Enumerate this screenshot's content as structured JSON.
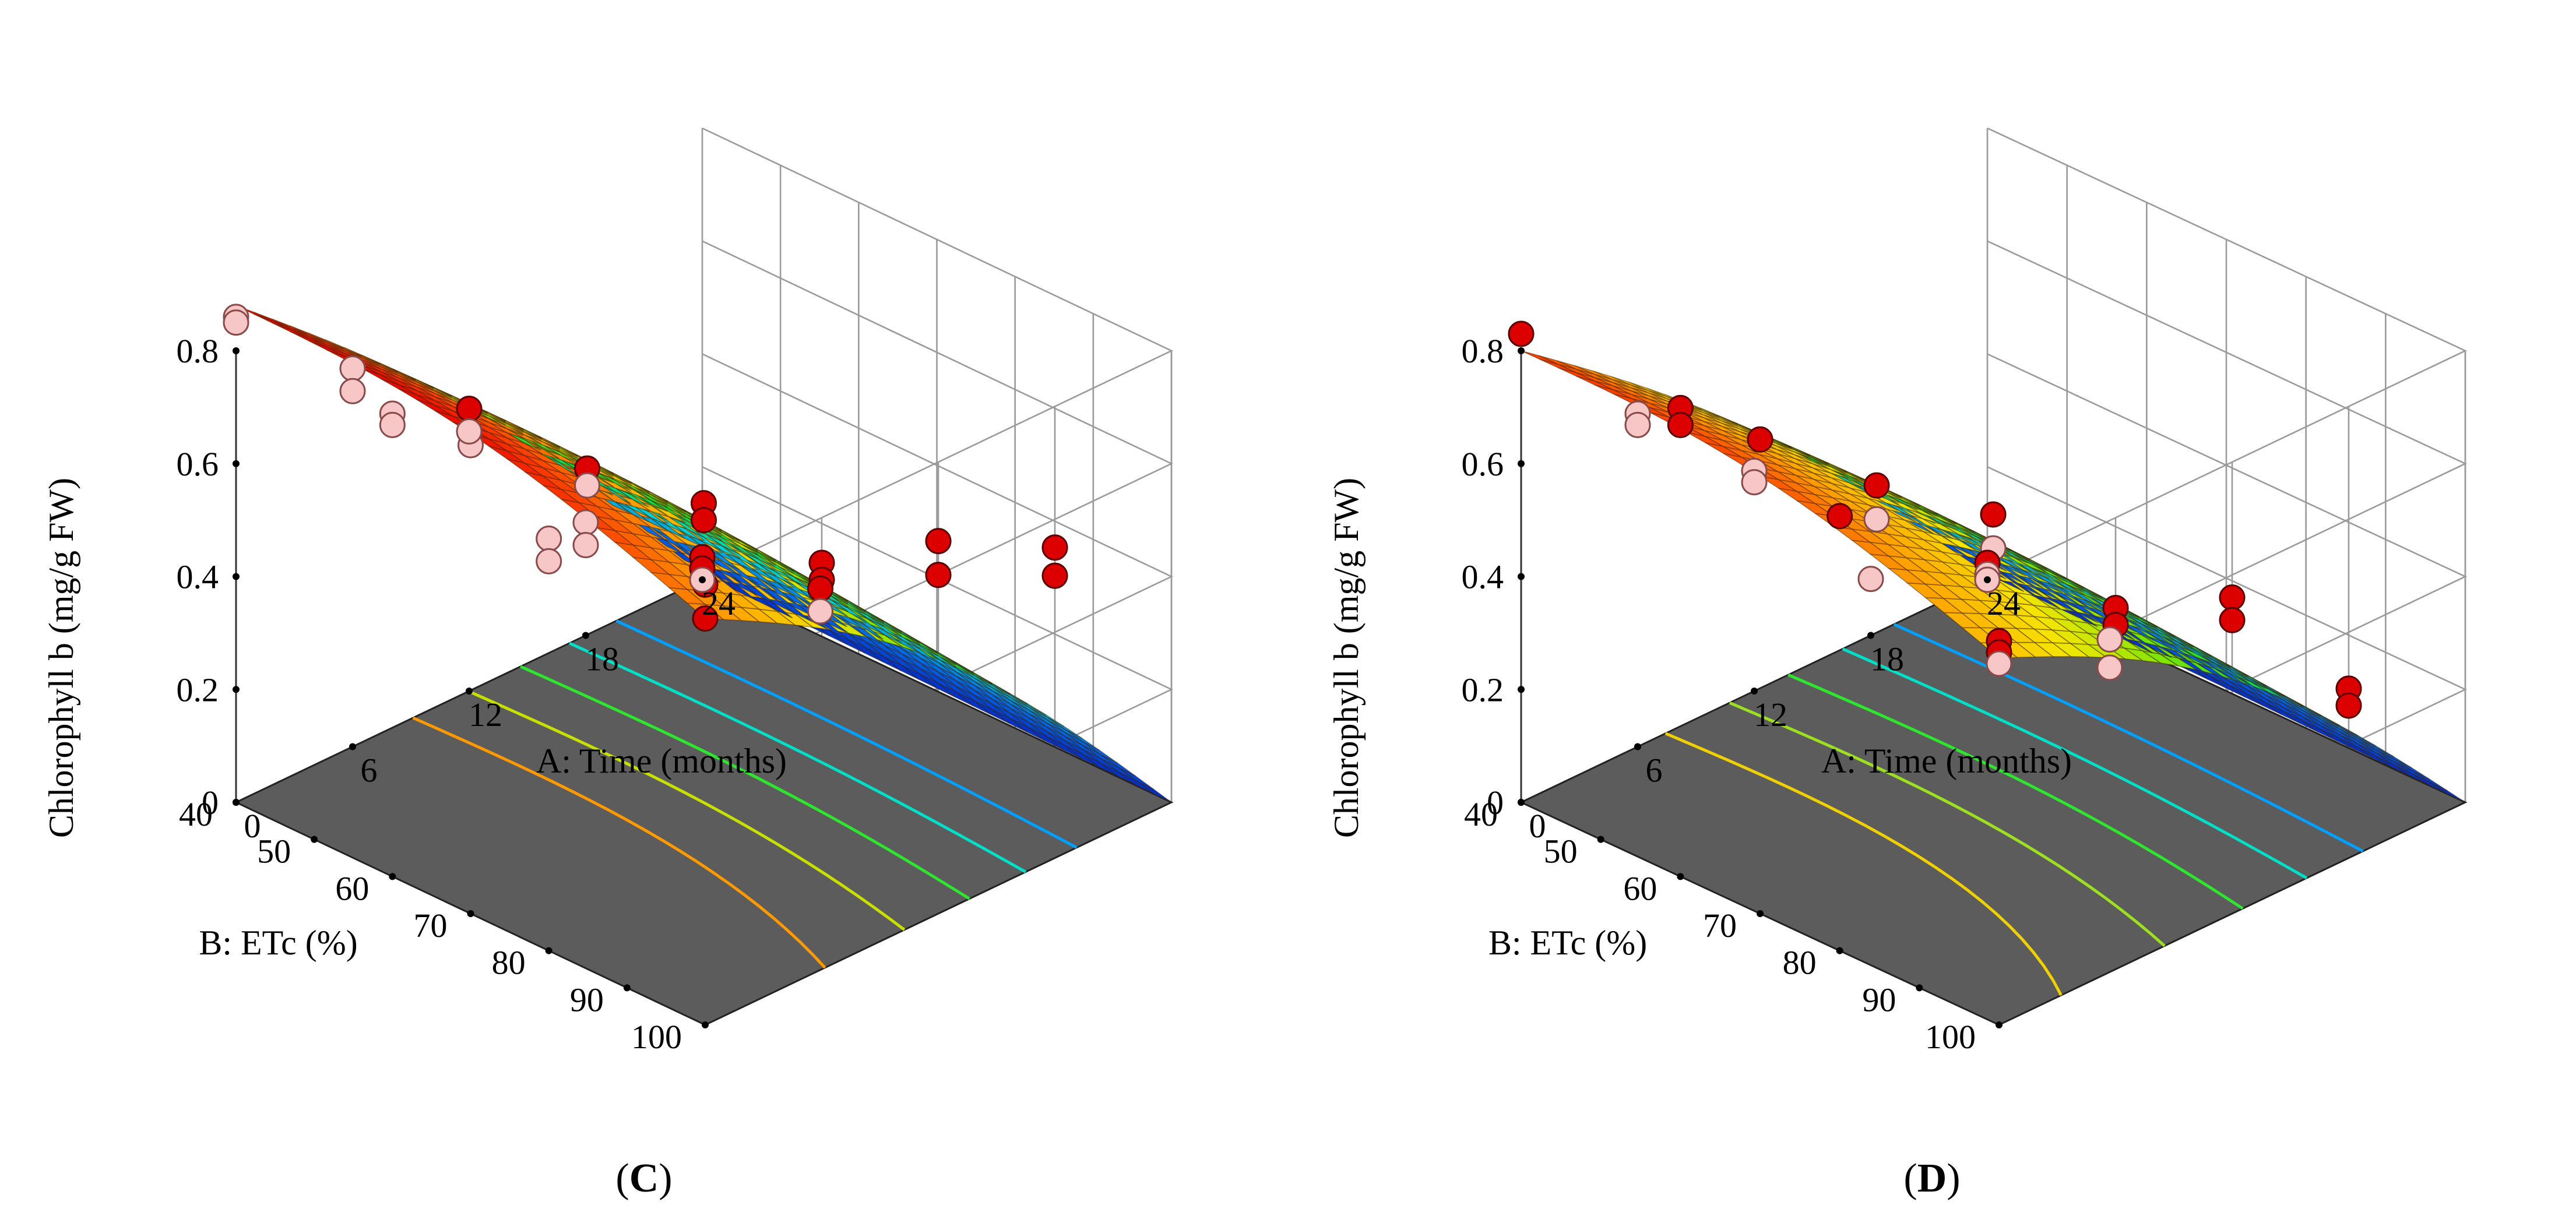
{
  "chart_data": [
    {
      "type": "surface3d",
      "panel_label": "C",
      "zlabel": "Chlorophyll b (mg/g FW)",
      "xlabel": "A: Time (months)",
      "ylabel": "B: ETc (%)",
      "x_ticks": [
        "0",
        "6",
        "12",
        "18",
        "24"
      ],
      "y_ticks": [
        "40",
        "50",
        "60",
        "70",
        "80",
        "90",
        "100"
      ],
      "z_ticks": [
        "0",
        "0.2",
        "0.4",
        "0.6",
        "0.8"
      ],
      "xlim": [
        0,
        24
      ],
      "ylim": [
        40,
        100
      ],
      "zlim": [
        0,
        0.8
      ],
      "surface": {
        "time": [
          0,
          24
        ],
        "etc": [
          40,
          100
        ],
        "corners": {
          "t0_e100": 0.72,
          "t0_e40": 0.88,
          "t24_e100": 0.0,
          "t24_e40": 0.01
        },
        "floor_contours": [
          0.6,
          0.5,
          0.4,
          0.3,
          0.2
        ],
        "contour_colors": [
          "#ff9900",
          "#c8e000",
          "#2ee62e",
          "#00e0c8",
          "#00a0ff"
        ]
      },
      "points": [
        {
          "time": 0,
          "etc": 100,
          "value": 0.78
        },
        {
          "time": 0,
          "etc": 100,
          "value": 0.72
        },
        {
          "time": 0,
          "etc": 80,
          "value": 0.73
        },
        {
          "time": 0,
          "etc": 80,
          "value": 0.69
        },
        {
          "time": 0,
          "etc": 70,
          "value": 0.83
        },
        {
          "time": 0,
          "etc": 60,
          "value": 0.82
        },
        {
          "time": 0,
          "etc": 60,
          "value": 0.8
        },
        {
          "time": 0,
          "etc": 40,
          "value": 0.86
        },
        {
          "time": 0,
          "etc": 40,
          "value": 0.85
        },
        {
          "time": 6,
          "etc": 100,
          "value": 0.72
        },
        {
          "time": 6,
          "etc": 100,
          "value": 0.69
        },
        {
          "time": 6,
          "etc": 70,
          "value": 0.69
        },
        {
          "time": 6,
          "etc": 70,
          "value": 0.66
        },
        {
          "time": 6,
          "etc": 40,
          "value": 0.67
        },
        {
          "time": 6,
          "etc": 40,
          "value": 0.63
        },
        {
          "time": 12,
          "etc": 100,
          "value": 0.66
        },
        {
          "time": 12,
          "etc": 100,
          "value": 0.6
        },
        {
          "time": 12,
          "etc": 70,
          "value": 0.53
        },
        {
          "time": 12,
          "etc": 70,
          "value": 0.5
        },
        {
          "time": 12,
          "etc": 40,
          "value": 0.5
        },
        {
          "time": 12,
          "etc": 40,
          "value": 0.46
        },
        {
          "time": 18,
          "etc": 100,
          "value": 0.55
        },
        {
          "time": 18,
          "etc": 100,
          "value": 0.5
        },
        {
          "time": 18,
          "etc": 70,
          "value": 0.28
        },
        {
          "time": 18,
          "etc": 70,
          "value": 0.24
        },
        {
          "time": 18,
          "etc": 40,
          "value": 0.2
        },
        {
          "time": 18,
          "etc": 40,
          "value": 0.16
        },
        {
          "time": 24,
          "etc": 40,
          "value": 0.04
        },
        {
          "time": 24,
          "etc": 40,
          "value": 0.02
        },
        {
          "time": 24,
          "etc": 40,
          "value": 0.0
        }
      ]
    },
    {
      "type": "surface3d",
      "panel_label": "D",
      "zlabel": "Chlorophyll b (mg/g FW)",
      "xlabel": "A: Time (months)",
      "ylabel": "B: ETc (%)",
      "x_ticks": [
        "0",
        "6",
        "12",
        "18",
        "24"
      ],
      "y_ticks": [
        "40",
        "50",
        "60",
        "70",
        "80",
        "90",
        "100"
      ],
      "z_ticks": [
        "0",
        "0.2",
        "0.4",
        "0.6",
        "0.8"
      ],
      "xlim": [
        0,
        24
      ],
      "ylim": [
        40,
        100
      ],
      "zlim": [
        0,
        0.8
      ],
      "surface": {
        "time": [
          0,
          24
        ],
        "etc": [
          40,
          100
        ],
        "corners": {
          "t0_e100": 0.65,
          "t0_e40": 0.8,
          "t24_e100": 0.0,
          "t24_e40": 0.01
        },
        "floor_contours": [
          0.6,
          0.5,
          0.4,
          0.3,
          0.2
        ],
        "contour_colors": [
          "#f0d000",
          "#9de020",
          "#2ee62e",
          "#00e0c8",
          "#00a0ff"
        ]
      },
      "points": [
        {
          "time": 0,
          "etc": 100,
          "value": 0.68
        },
        {
          "time": 0,
          "etc": 100,
          "value": 0.66
        },
        {
          "time": 0,
          "etc": 100,
          "value": 0.64
        },
        {
          "time": 0,
          "etc": 80,
          "value": 0.77
        },
        {
          "time": 0,
          "etc": 70,
          "value": 0.84
        },
        {
          "time": 0,
          "etc": 60,
          "value": 0.83
        },
        {
          "time": 0,
          "etc": 60,
          "value": 0.8
        },
        {
          "time": 0,
          "etc": 40,
          "value": 0.83
        },
        {
          "time": 6,
          "etc": 100,
          "value": 0.64
        },
        {
          "time": 6,
          "etc": 100,
          "value": 0.61
        },
        {
          "time": 6,
          "etc": 70,
          "value": 0.66
        },
        {
          "time": 6,
          "etc": 70,
          "value": 0.6
        },
        {
          "time": 6,
          "etc": 40,
          "value": 0.59
        },
        {
          "time": 6,
          "etc": 40,
          "value": 0.57
        },
        {
          "time": 12,
          "etc": 100,
          "value": 0.56
        },
        {
          "time": 12,
          "etc": 100,
          "value": 0.52
        },
        {
          "time": 12,
          "etc": 70,
          "value": 0.51
        },
        {
          "time": 12,
          "etc": 70,
          "value": 0.45
        },
        {
          "time": 12,
          "etc": 40,
          "value": 0.39
        },
        {
          "time": 12,
          "etc": 40,
          "value": 0.37
        },
        {
          "time": 18,
          "etc": 100,
          "value": 0.3
        },
        {
          "time": 18,
          "etc": 100,
          "value": 0.27
        },
        {
          "time": 18,
          "etc": 70,
          "value": 0.19
        },
        {
          "time": 18,
          "etc": 70,
          "value": 0.14
        },
        {
          "time": 18,
          "etc": 40,
          "value": 0.1
        },
        {
          "time": 24,
          "etc": 40,
          "value": 0.03
        },
        {
          "time": 24,
          "etc": 40,
          "value": 0.01
        },
        {
          "time": 24,
          "etc": 40,
          "value": 0.0
        }
      ]
    }
  ]
}
